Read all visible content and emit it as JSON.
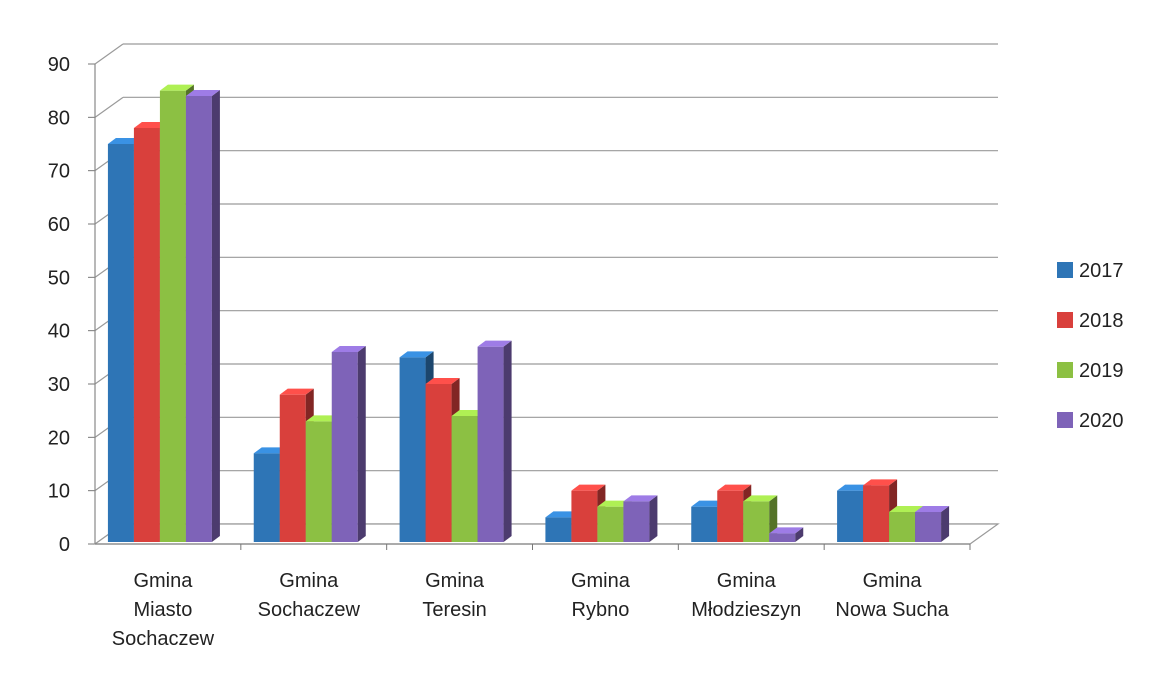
{
  "chart_data": {
    "type": "bar",
    "categories": [
      [
        "Gmina",
        "Miasto",
        "Sochaczew"
      ],
      [
        "Gmina",
        "Sochaczew"
      ],
      [
        "Gmina",
        "Teresin"
      ],
      [
        "Gmina",
        "Rybno"
      ],
      [
        "Gmina",
        "Młodzieszyn"
      ],
      [
        "Gmina",
        "Nowa Sucha"
      ]
    ],
    "series": [
      {
        "name": "2017",
        "color": "#2e75b6",
        "values": [
          75,
          17,
          35,
          5,
          7,
          10
        ]
      },
      {
        "name": "2018",
        "color": "#d9403c",
        "values": [
          78,
          28,
          30,
          10,
          10,
          11
        ]
      },
      {
        "name": "2019",
        "color": "#8cc043",
        "values": [
          85,
          23,
          24,
          7,
          8,
          6
        ]
      },
      {
        "name": "2020",
        "color": "#7e63b8",
        "values": [
          84,
          36,
          37,
          8,
          2,
          6
        ]
      }
    ],
    "ylim": [
      0,
      90
    ],
    "yticks": [
      0,
      10,
      20,
      30,
      40,
      50,
      60,
      70,
      80,
      90
    ],
    "grid": true,
    "legend_position": "right",
    "title": "",
    "xlabel": "",
    "ylabel": ""
  }
}
